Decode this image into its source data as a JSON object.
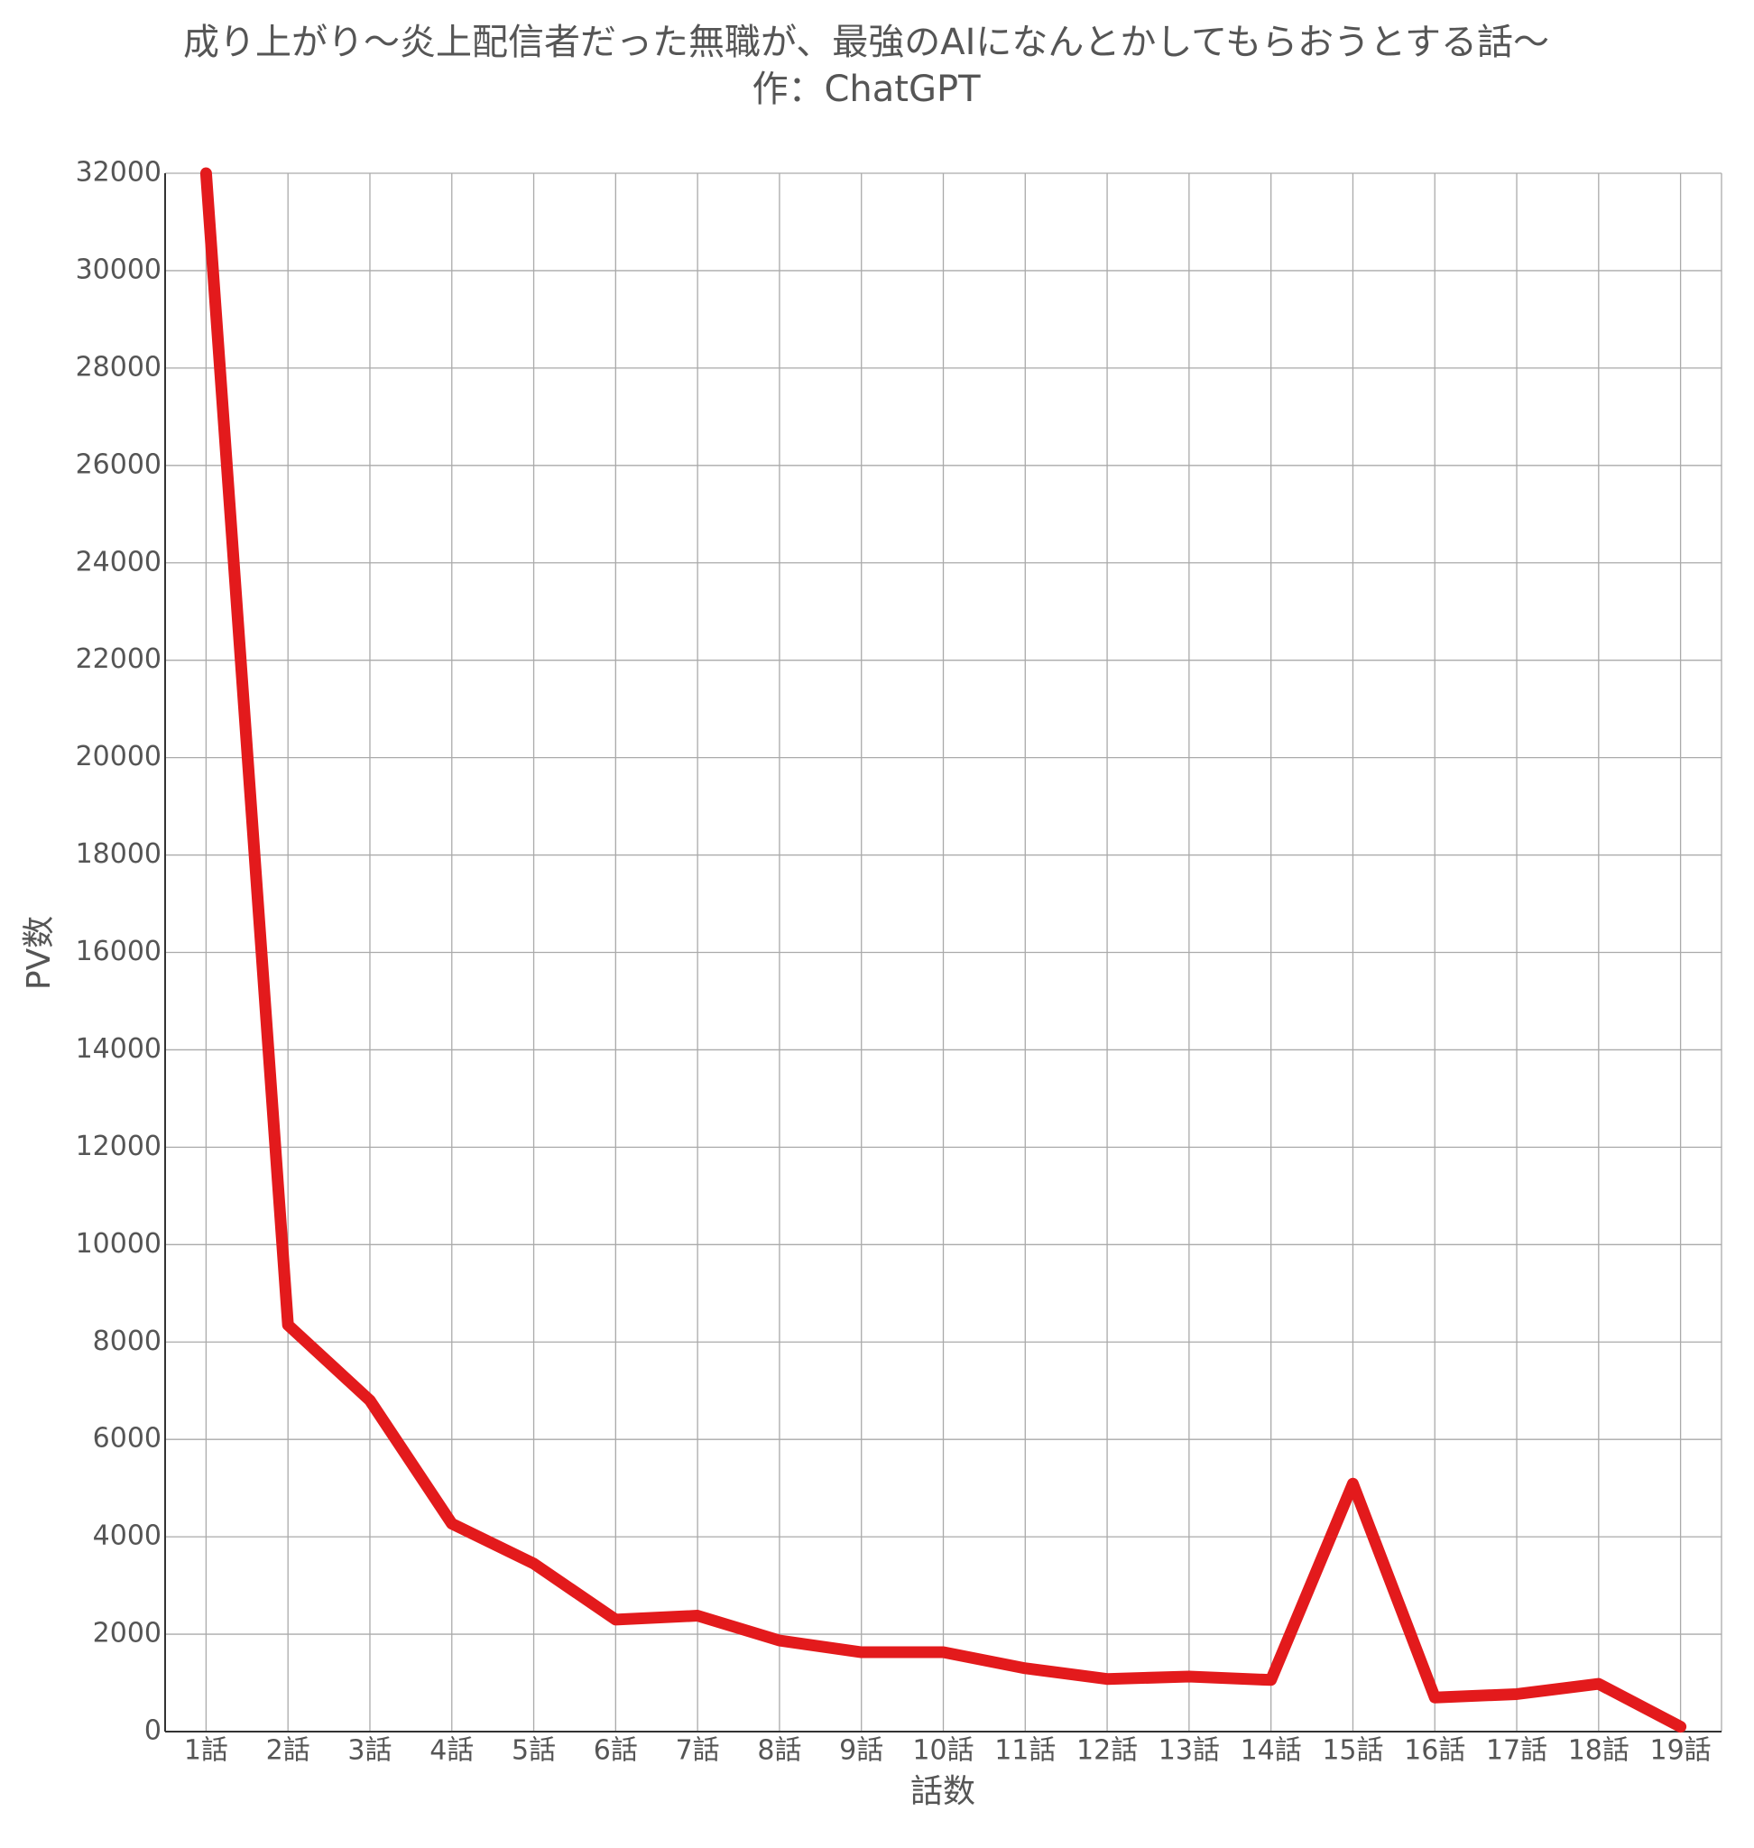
{
  "chart_data": {
    "type": "line",
    "title": "成り上がり〜炎上配信者だった無職が、最強のAIになんとかしてもらおうとする話〜",
    "subtitle": "作：ChatGPT",
    "x_label": "話数",
    "y_label": "PV数",
    "categories": [
      "1話",
      "2話",
      "3話",
      "4話",
      "5話",
      "6話",
      "7話",
      "8話",
      "9話",
      "10話",
      "11話",
      "12話",
      "13話",
      "14話",
      "15話",
      "16話",
      "17話",
      "18話",
      "19話"
    ],
    "series": [
      {
        "color": "#e31a1c",
        "values": [
          32000,
          8350,
          6800,
          4270,
          3450,
          2300,
          2380,
          1870,
          1630,
          1630,
          1300,
          1080,
          1130,
          1060,
          5090,
          700,
          770,
          980,
          100
        ]
      }
    ],
    "ylim": [
      0,
      32000
    ],
    "yticks": [
      0,
      2000,
      4000,
      6000,
      8000,
      10000,
      12000,
      14000,
      16000,
      18000,
      20000,
      22000,
      24000,
      26000,
      28000,
      30000,
      32000
    ],
    "grid": true
  }
}
